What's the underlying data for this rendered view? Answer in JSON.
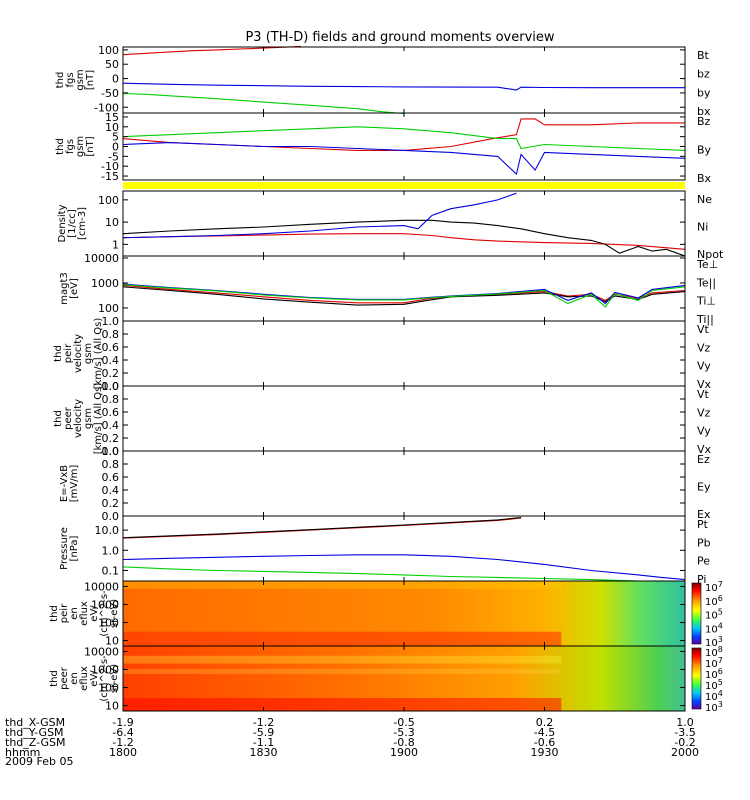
{
  "title": "P3 (TH-D) fields and ground moments overview",
  "colors": {
    "black": "#000000",
    "red": "#e00000",
    "green": "#00d000",
    "blue": "#0000e0",
    "yellow": "#ffff00"
  },
  "chart_data": [
    {
      "type": "line",
      "id": "fgs_gsm",
      "ylabel": [
        "thd",
        "fgs",
        "gsm",
        "[nT]"
      ],
      "ylim": [
        -120,
        110
      ],
      "yticks": [
        "100",
        "50",
        "0",
        "-50",
        "-100"
      ],
      "ytick_values": [
        100,
        50,
        0,
        -50,
        -100
      ],
      "legend": [
        "Bt",
        "bz",
        "by",
        "bx"
      ],
      "series": [
        {
          "name": "bz",
          "color": "red",
          "x": [
            0,
            5,
            10,
            15,
            20,
            25,
            30,
            38
          ],
          "y": [
            83,
            88,
            93,
            97,
            100,
            103,
            106,
            112
          ]
        },
        {
          "name": "by",
          "color": "green",
          "x": [
            0,
            5,
            10,
            20,
            30,
            40,
            50,
            55,
            60
          ],
          "y": [
            -52,
            -55,
            -60,
            -70,
            -82,
            -93,
            -105,
            -115,
            -122
          ]
        },
        {
          "name": "bx",
          "color": "blue",
          "x": [
            0,
            10,
            20,
            30,
            40,
            50,
            60,
            80,
            84,
            85,
            90,
            100,
            110,
            120
          ],
          "y": [
            -16,
            -20,
            -23,
            -25,
            -27,
            -28,
            -29,
            -30,
            -40,
            -30,
            -31,
            -32,
            -32,
            -32
          ]
        }
      ]
    },
    {
      "type": "line",
      "id": "fgs_gsm_detrended",
      "ylabel": [
        "thd",
        "fgs",
        "gsm",
        "[nT]"
      ],
      "ylim": [
        -17,
        17
      ],
      "yticks": [
        "15",
        "10",
        "5",
        "0",
        "-5",
        "-10",
        "-15"
      ],
      "ytick_values": [
        15,
        10,
        5,
        0,
        -5,
        -10,
        -15
      ],
      "legend": [
        "Bz",
        "By",
        "Bx"
      ],
      "series": [
        {
          "name": "Bz",
          "color": "red",
          "x": [
            0,
            10,
            20,
            30,
            40,
            50,
            60,
            70,
            79,
            84,
            85,
            88,
            90,
            100,
            110,
            120
          ],
          "y": [
            4,
            2,
            1,
            0,
            -1,
            -2,
            -2,
            0,
            4,
            6,
            14,
            14,
            11,
            11,
            12,
            12
          ]
        },
        {
          "name": "By",
          "color": "green",
          "x": [
            0,
            10,
            20,
            30,
            40,
            50,
            60,
            70,
            80,
            84,
            85,
            90,
            100,
            110,
            120
          ],
          "y": [
            5,
            6,
            7,
            8,
            9,
            10,
            9,
            7,
            4,
            4,
            -1,
            1,
            0,
            -1,
            -2
          ]
        },
        {
          "name": "Bx",
          "color": "blue",
          "x": [
            0,
            10,
            20,
            30,
            40,
            50,
            60,
            70,
            80,
            84,
            85,
            88,
            90,
            100,
            110,
            120
          ],
          "y": [
            1,
            2,
            1,
            0,
            0,
            -1,
            -2,
            -3,
            -5,
            -14,
            -4,
            -12,
            -3,
            -4,
            -5,
            -6
          ]
        }
      ]
    },
    {
      "type": "bar",
      "id": "yellow_band",
      "color": "yellow"
    },
    {
      "type": "line",
      "id": "density",
      "scale": "log",
      "ylabel": [
        "Density",
        "[1/cc]",
        "[cm-3]"
      ],
      "ylim": [
        0.3,
        250
      ],
      "yticks": [
        "100",
        "10",
        "1"
      ],
      "ytick_values": [
        100,
        10,
        1
      ],
      "legend": [
        "Ne",
        "Ni",
        "Npot"
      ],
      "series": [
        {
          "name": "Ne",
          "color": "red",
          "x": [
            0,
            10,
            20,
            30,
            40,
            50,
            60,
            66,
            70,
            75,
            80,
            90,
            100,
            110,
            120
          ],
          "y": [
            2,
            2.2,
            2.4,
            2.6,
            2.9,
            3,
            3,
            2.5,
            2,
            1.6,
            1.4,
            1.2,
            1.1,
            0.9,
            0.6
          ]
        },
        {
          "name": "Ni",
          "color": "black",
          "x": [
            0,
            10,
            20,
            30,
            40,
            50,
            60,
            66,
            70,
            75,
            80,
            85,
            90,
            95,
            100,
            103,
            106,
            110,
            113,
            116,
            120
          ],
          "y": [
            3,
            4,
            5,
            6,
            8,
            10,
            12,
            12,
            10,
            9,
            7,
            5,
            3,
            2,
            1.5,
            1,
            0.4,
            0.8,
            0.5,
            0.6,
            0.3
          ]
        },
        {
          "name": "Npot",
          "color": "blue",
          "x": [
            0,
            10,
            20,
            30,
            40,
            50,
            60,
            63,
            66,
            70,
            75,
            80,
            84
          ],
          "y": [
            2,
            2.2,
            2.5,
            3,
            4,
            6,
            7,
            5,
            20,
            40,
            60,
            100,
            200
          ]
        }
      ]
    },
    {
      "type": "line",
      "id": "temperature",
      "scale": "log",
      "ylabel": [
        "magt3",
        "[eV]"
      ],
      "ylim": [
        30,
        12000
      ],
      "yticks": [
        "10000",
        "1000",
        "100"
      ],
      "ytick_values": [
        10000,
        1000,
        100
      ],
      "legend": [
        "Te⊥",
        "Te||",
        "Ti⊥",
        "Ti||"
      ],
      "series": [
        {
          "name": "Te⊥",
          "color": "red",
          "x": [
            0,
            10,
            20,
            30,
            40,
            50,
            60,
            65,
            70,
            80,
            90,
            95,
            100,
            103,
            105,
            110,
            113,
            120
          ],
          "y": [
            800,
            550,
            400,
            280,
            200,
            160,
            160,
            230,
            300,
            350,
            450,
            300,
            350,
            200,
            350,
            250,
            400,
            500
          ]
        },
        {
          "name": "Te||",
          "color": "black",
          "x": [
            0,
            10,
            20,
            30,
            40,
            50,
            60,
            65,
            70,
            80,
            90,
            95,
            100,
            103,
            105,
            110,
            113,
            120
          ],
          "y": [
            700,
            500,
            350,
            230,
            170,
            130,
            140,
            200,
            280,
            320,
            400,
            280,
            300,
            180,
            300,
            220,
            350,
            450
          ]
        },
        {
          "name": "Ti⊥",
          "color": "blue",
          "x": [
            0,
            10,
            20,
            30,
            40,
            50,
            60,
            65,
            70,
            80,
            90,
            95,
            100,
            103,
            105,
            110,
            113,
            120
          ],
          "y": [
            900,
            650,
            500,
            350,
            260,
            220,
            220,
            260,
            300,
            380,
            550,
            200,
            400,
            150,
            420,
            250,
            550,
            800
          ]
        },
        {
          "name": "Ti||",
          "color": "green",
          "x": [
            0,
            10,
            20,
            30,
            40,
            50,
            60,
            65,
            70,
            80,
            90,
            95,
            100,
            103,
            105,
            110,
            113,
            120
          ],
          "y": [
            850,
            620,
            480,
            330,
            250,
            210,
            210,
            250,
            290,
            360,
            500,
            150,
            350,
            110,
            380,
            200,
            500,
            700
          ]
        }
      ]
    },
    {
      "type": "line",
      "id": "peir_velocity",
      "ylabel": [
        "thd",
        "peir",
        "velocity",
        "gsm",
        "[km/s] (All Qs)"
      ],
      "ylim": [
        0,
        1
      ],
      "yticks": [
        "1.0",
        "0.8",
        "0.6",
        "0.4",
        "0.2",
        "0.0"
      ],
      "ytick_values": [
        1,
        0.8,
        0.6,
        0.4,
        0.2,
        0
      ],
      "legend": [
        "Vt",
        "Vz",
        "Vy",
        "Vx"
      ],
      "series": []
    },
    {
      "type": "line",
      "id": "peer_velocity",
      "ylabel": [
        "thd",
        "peer",
        "velocity",
        "gsm",
        "[km/s] (All Qs)"
      ],
      "ylim": [
        0,
        1
      ],
      "yticks": [
        "1.0",
        "0.8",
        "0.6",
        "0.4",
        "0.2",
        "0.0"
      ],
      "ytick_values": [
        1,
        0.8,
        0.6,
        0.4,
        0.2,
        0
      ],
      "legend": [
        "Vt",
        "Vz",
        "Vy",
        "Vx"
      ],
      "series": []
    },
    {
      "type": "line",
      "id": "efield",
      "ylabel": [
        "E=-VxB",
        "[mV/m]"
      ],
      "ylim": [
        0,
        1
      ],
      "yticks": [
        "1.0",
        "0.8",
        "0.6",
        "0.4",
        "0.2",
        "0.0"
      ],
      "ytick_values": [
        1,
        0.8,
        0.6,
        0.4,
        0.2,
        0
      ],
      "legend": [
        "Ez",
        "Ey",
        "Ex"
      ],
      "series": []
    },
    {
      "type": "line",
      "id": "pressure",
      "scale": "log",
      "ylabel": [
        "Pressure",
        "[nPa]"
      ],
      "ylim": [
        0.03,
        50
      ],
      "yticks": [
        "10.0",
        "1.0",
        "0.1"
      ],
      "ytick_values": [
        10,
        1,
        0.1
      ],
      "legend": [
        "Pt",
        "Pb",
        "Pe",
        "Pi"
      ],
      "series": [
        {
          "name": "Pb",
          "color": "red",
          "x": [
            0,
            20,
            40,
            60,
            80,
            85
          ],
          "y": [
            4,
            6,
            10,
            17,
            30,
            40
          ]
        },
        {
          "name": "Pt",
          "color": "black",
          "x": [
            0,
            20,
            40,
            60,
            80,
            85
          ],
          "y": [
            4.2,
            6.3,
            10.5,
            18,
            32,
            42
          ]
        },
        {
          "name": "Pe",
          "color": "green",
          "x": [
            0,
            10,
            20,
            30,
            40,
            50,
            60,
            70,
            80,
            90,
            100,
            110,
            120
          ],
          "y": [
            0.15,
            0.12,
            0.1,
            0.09,
            0.08,
            0.07,
            0.06,
            0.05,
            0.045,
            0.04,
            0.035,
            0.03,
            0.03
          ]
        },
        {
          "name": "Pi",
          "color": "blue",
          "x": [
            0,
            10,
            20,
            30,
            40,
            50,
            60,
            70,
            80,
            90,
            100,
            110,
            115,
            120
          ],
          "y": [
            0.35,
            0.4,
            0.45,
            0.5,
            0.55,
            0.6,
            0.6,
            0.5,
            0.35,
            0.2,
            0.1,
            0.06,
            0.045,
            0.035
          ]
        }
      ]
    },
    {
      "type": "heatmap",
      "id": "peir_spectrogram",
      "ylabel": [
        "thd",
        "peir",
        "en",
        "eflux",
        "eV/",
        "(cm^2-s-",
        "sr-eV)"
      ],
      "yticks": [
        "10000",
        "1000",
        "100",
        "10"
      ],
      "ytick_values": [
        10000,
        1000,
        100,
        10
      ],
      "colorbar": {
        "labels": [
          "10",
          "10",
          "10",
          "10",
          "10"
        ],
        "exponents": [
          "7",
          "6",
          "5",
          "4",
          "3"
        ]
      }
    },
    {
      "type": "heatmap",
      "id": "peer_spectrogram",
      "ylabel": [
        "thd",
        "peer",
        "en",
        "eflux",
        "eV/",
        "(cm^2-s-",
        "sr-eV)"
      ],
      "yticks": [
        "10000",
        "1000",
        "100",
        "10"
      ],
      "ytick_values": [
        10000,
        1000,
        100,
        10
      ],
      "colorbar": {
        "labels": [
          "10",
          "10",
          "10",
          "10",
          "10",
          "10"
        ],
        "exponents": [
          "8",
          "7",
          "6",
          "5",
          "4",
          "3"
        ]
      }
    }
  ],
  "xaxis": {
    "range_minutes": [
      0,
      120
    ],
    "rows": [
      {
        "label": "thd_X-GSM",
        "values": [
          "-1.9",
          "-1.2",
          "-0.5",
          "0.2",
          "1.0"
        ]
      },
      {
        "label": "thd_Y-GSM",
        "values": [
          "-6.4",
          "-5.9",
          "-5.3",
          "-4.5",
          "-3.5"
        ]
      },
      {
        "label": "thd_Z-GSM",
        "values": [
          "-1.2",
          "-1.1",
          "-0.8",
          "-0.6",
          "-0.2"
        ]
      },
      {
        "label": "hhmm",
        "values": [
          "1800",
          "1830",
          "1900",
          "1930",
          "2000"
        ]
      }
    ],
    "date": "2009 Feb 05",
    "tick_minutes": [
      0,
      30,
      60,
      90,
      120
    ]
  }
}
